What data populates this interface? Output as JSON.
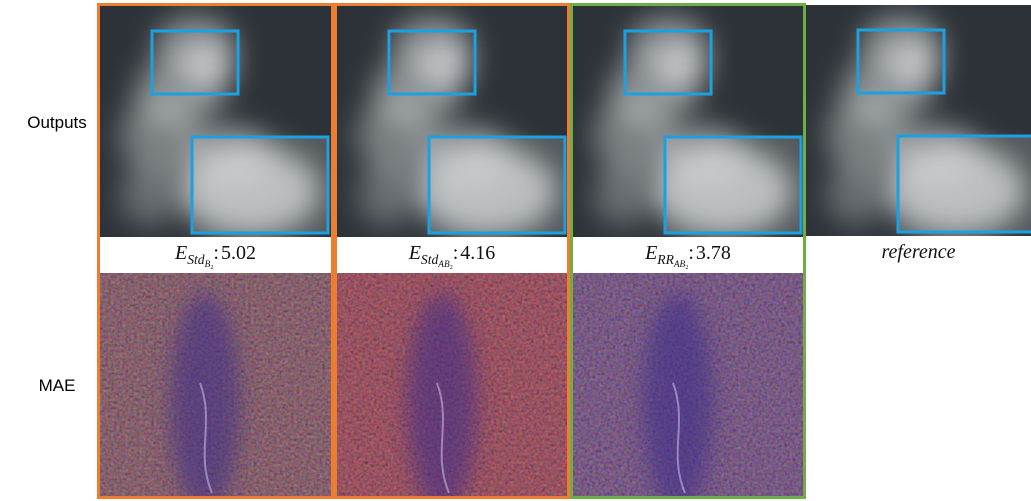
{
  "row_labels": [
    "Outputs",
    "MAE"
  ],
  "columns": [
    {
      "caption": {
        "symbol": "E",
        "sub": "Std",
        "sub_sub": "B",
        "sub_sub_index": "2",
        "separator": ":",
        "value": 5.02
      }
    },
    {
      "caption": {
        "symbol": "E",
        "sub": "Std",
        "sub_sub": "AB",
        "sub_sub_index": "2",
        "separator": ":",
        "value": 4.16
      }
    },
    {
      "caption": {
        "symbol": "E",
        "sub": "RR",
        "sub_sub": "AB",
        "sub_sub_index": "2",
        "separator": ":",
        "value": 3.78
      }
    },
    {
      "caption": {
        "text": "reference"
      }
    }
  ]
}
